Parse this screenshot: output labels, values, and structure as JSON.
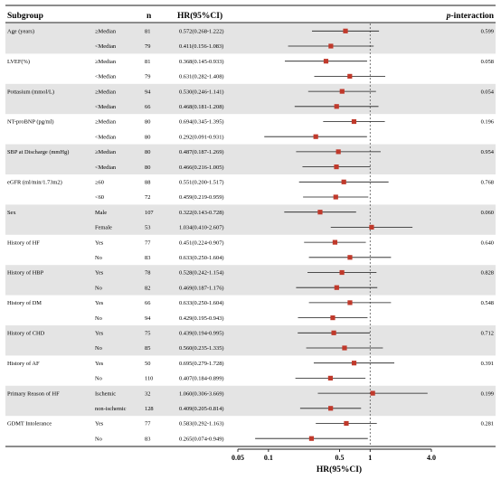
{
  "chart_data": {
    "type": "forest",
    "columns": {
      "subgroup": "Subgroup",
      "n": "n",
      "hr": "HR(95%CI)",
      "p_prefix": "p",
      "p_suffix": "-interaction"
    },
    "xlabel": "HR(95%CI)",
    "x_scale": "log",
    "xlim": [
      0.05,
      4.0
    ],
    "xticks": [
      "0.05",
      "0.1",
      "0.5",
      "1",
      "4.0"
    ],
    "xtick_values": [
      0.05,
      0.1,
      0.5,
      1,
      4.0
    ],
    "reference_line": 1,
    "colors": {
      "marker": "#c0392b",
      "band": "#e4e4e4",
      "ci": "#1a1a1a"
    },
    "groups": [
      {
        "name": "Age (years)",
        "p": "0.599",
        "rows": [
          {
            "level": "≥Median",
            "n": "81",
            "label": "0.572(0.268-1.222)",
            "hr": 0.572,
            "lo": 0.268,
            "hi": 1.222
          },
          {
            "level": "<Median",
            "n": "79",
            "label": "0.411(0.156-1.083)",
            "hr": 0.411,
            "lo": 0.156,
            "hi": 1.083
          }
        ]
      },
      {
        "name": "LVEF(%)",
        "p": "0.058",
        "rows": [
          {
            "level": "≥Median",
            "n": "81",
            "label": "0.368(0.145-0.933)",
            "hr": 0.368,
            "lo": 0.145,
            "hi": 0.933
          },
          {
            "level": "<Median",
            "n": "79",
            "label": "0.631(0.282-1.408)",
            "hr": 0.631,
            "lo": 0.282,
            "hi": 1.408
          }
        ]
      },
      {
        "name": "Pottasium (mmol/L)",
        "p": "0.054",
        "rows": [
          {
            "level": "≥Median",
            "n": "94",
            "label": "0.530(0.246-1.141)",
            "hr": 0.53,
            "lo": 0.246,
            "hi": 1.141
          },
          {
            "level": "<Median",
            "n": "66",
            "label": "0.468(0.181-1.208)",
            "hr": 0.468,
            "lo": 0.181,
            "hi": 1.208
          }
        ]
      },
      {
        "name": "NT-proBNP (pg/ml)",
        "p": "0.196",
        "rows": [
          {
            "level": "≥Median",
            "n": "80",
            "label": "0.694(0.345-1.395)",
            "hr": 0.694,
            "lo": 0.345,
            "hi": 1.395
          },
          {
            "level": "<Median",
            "n": "80",
            "label": "0.292(0.091-0.931)",
            "hr": 0.292,
            "lo": 0.091,
            "hi": 0.931
          }
        ]
      },
      {
        "name": "SBP at Discharge (mmHg)",
        "p": "0.954",
        "rows": [
          {
            "level": "≥Median",
            "n": "80",
            "label": "0.487(0.187-1.269)",
            "hr": 0.487,
            "lo": 0.187,
            "hi": 1.269
          },
          {
            "level": "<Median",
            "n": "80",
            "label": "0.466(0.216-1.005)",
            "hr": 0.466,
            "lo": 0.216,
            "hi": 1.005
          }
        ]
      },
      {
        "name": "eGFR (ml/min/1.73m2)",
        "p": "0.768",
        "rows": [
          {
            "level": "≥60",
            "n": "88",
            "label": "0.551(0.200-1.517)",
            "hr": 0.551,
            "lo": 0.2,
            "hi": 1.517
          },
          {
            "level": "<60",
            "n": "72",
            "label": "0.459(0.219-0.959)",
            "hr": 0.459,
            "lo": 0.219,
            "hi": 0.959
          }
        ]
      },
      {
        "name": "Sex",
        "p": "0.060",
        "rows": [
          {
            "level": "Male",
            "n": "107",
            "label": "0.322(0.143-0.728)",
            "hr": 0.322,
            "lo": 0.143,
            "hi": 0.728
          },
          {
            "level": "Female",
            "n": "53",
            "label": "1.034(0.410-2.607)",
            "hr": 1.034,
            "lo": 0.41,
            "hi": 2.607
          }
        ]
      },
      {
        "name": "History of HF",
        "p": "0.640",
        "rows": [
          {
            "level": "Yes",
            "n": "77",
            "label": "0.451(0.224-0.907)",
            "hr": 0.451,
            "lo": 0.224,
            "hi": 0.907
          },
          {
            "level": "No",
            "n": "83",
            "label": "0.633(0.250-1.604)",
            "hr": 0.633,
            "lo": 0.25,
            "hi": 1.604
          }
        ]
      },
      {
        "name": "History of HBP",
        "p": "0.828",
        "rows": [
          {
            "level": "Yes",
            "n": "78",
            "label": "0.528(0.242-1.154)",
            "hr": 0.528,
            "lo": 0.242,
            "hi": 1.154
          },
          {
            "level": "No",
            "n": "82",
            "label": "0.469(0.187-1.176)",
            "hr": 0.469,
            "lo": 0.187,
            "hi": 1.176
          }
        ]
      },
      {
        "name": "History of DM",
        "p": "0.548",
        "rows": [
          {
            "level": "Yes",
            "n": "66",
            "label": "0.633(0.250-1.604)",
            "hr": 0.633,
            "lo": 0.25,
            "hi": 1.604
          },
          {
            "level": "No",
            "n": "94",
            "label": "0.429(0.195-0.943)",
            "hr": 0.429,
            "lo": 0.195,
            "hi": 0.943
          }
        ]
      },
      {
        "name": "History of CHD",
        "p": "0.712",
        "rows": [
          {
            "level": "Yes",
            "n": "75",
            "label": "0.439(0.194-0.995)",
            "hr": 0.439,
            "lo": 0.194,
            "hi": 0.995
          },
          {
            "level": "No",
            "n": "85",
            "label": "0.560(0.235-1.335)",
            "hr": 0.56,
            "lo": 0.235,
            "hi": 1.335
          }
        ]
      },
      {
        "name": "History of AF",
        "p": "0.391",
        "rows": [
          {
            "level": "Yes",
            "n": "50",
            "label": "0.695(0.279-1.728)",
            "hr": 0.695,
            "lo": 0.279,
            "hi": 1.728
          },
          {
            "level": "No",
            "n": "110",
            "label": "0.407(0.184-0.899)",
            "hr": 0.407,
            "lo": 0.184,
            "hi": 0.899
          }
        ]
      },
      {
        "name": "Primary Reason of HF",
        "p": "0.199",
        "rows": [
          {
            "level": "Ischemic",
            "n": "32",
            "label": "1.060(0.306-3.669)",
            "hr": 1.06,
            "lo": 0.306,
            "hi": 3.669
          },
          {
            "level": "non-ischemic",
            "n": "128",
            "label": "0.409(0.205-0.814)",
            "hr": 0.409,
            "lo": 0.205,
            "hi": 0.814
          }
        ]
      },
      {
        "name": "GDMT Intolerance",
        "p": "0.281",
        "rows": [
          {
            "level": "Yes",
            "n": "77",
            "label": "0.583(0.292-1.163)",
            "hr": 0.583,
            "lo": 0.292,
            "hi": 1.163
          },
          {
            "level": "No",
            "n": "83",
            "label": "0.265(0.074-0.949)",
            "hr": 0.265,
            "lo": 0.074,
            "hi": 0.949
          }
        ]
      }
    ]
  }
}
